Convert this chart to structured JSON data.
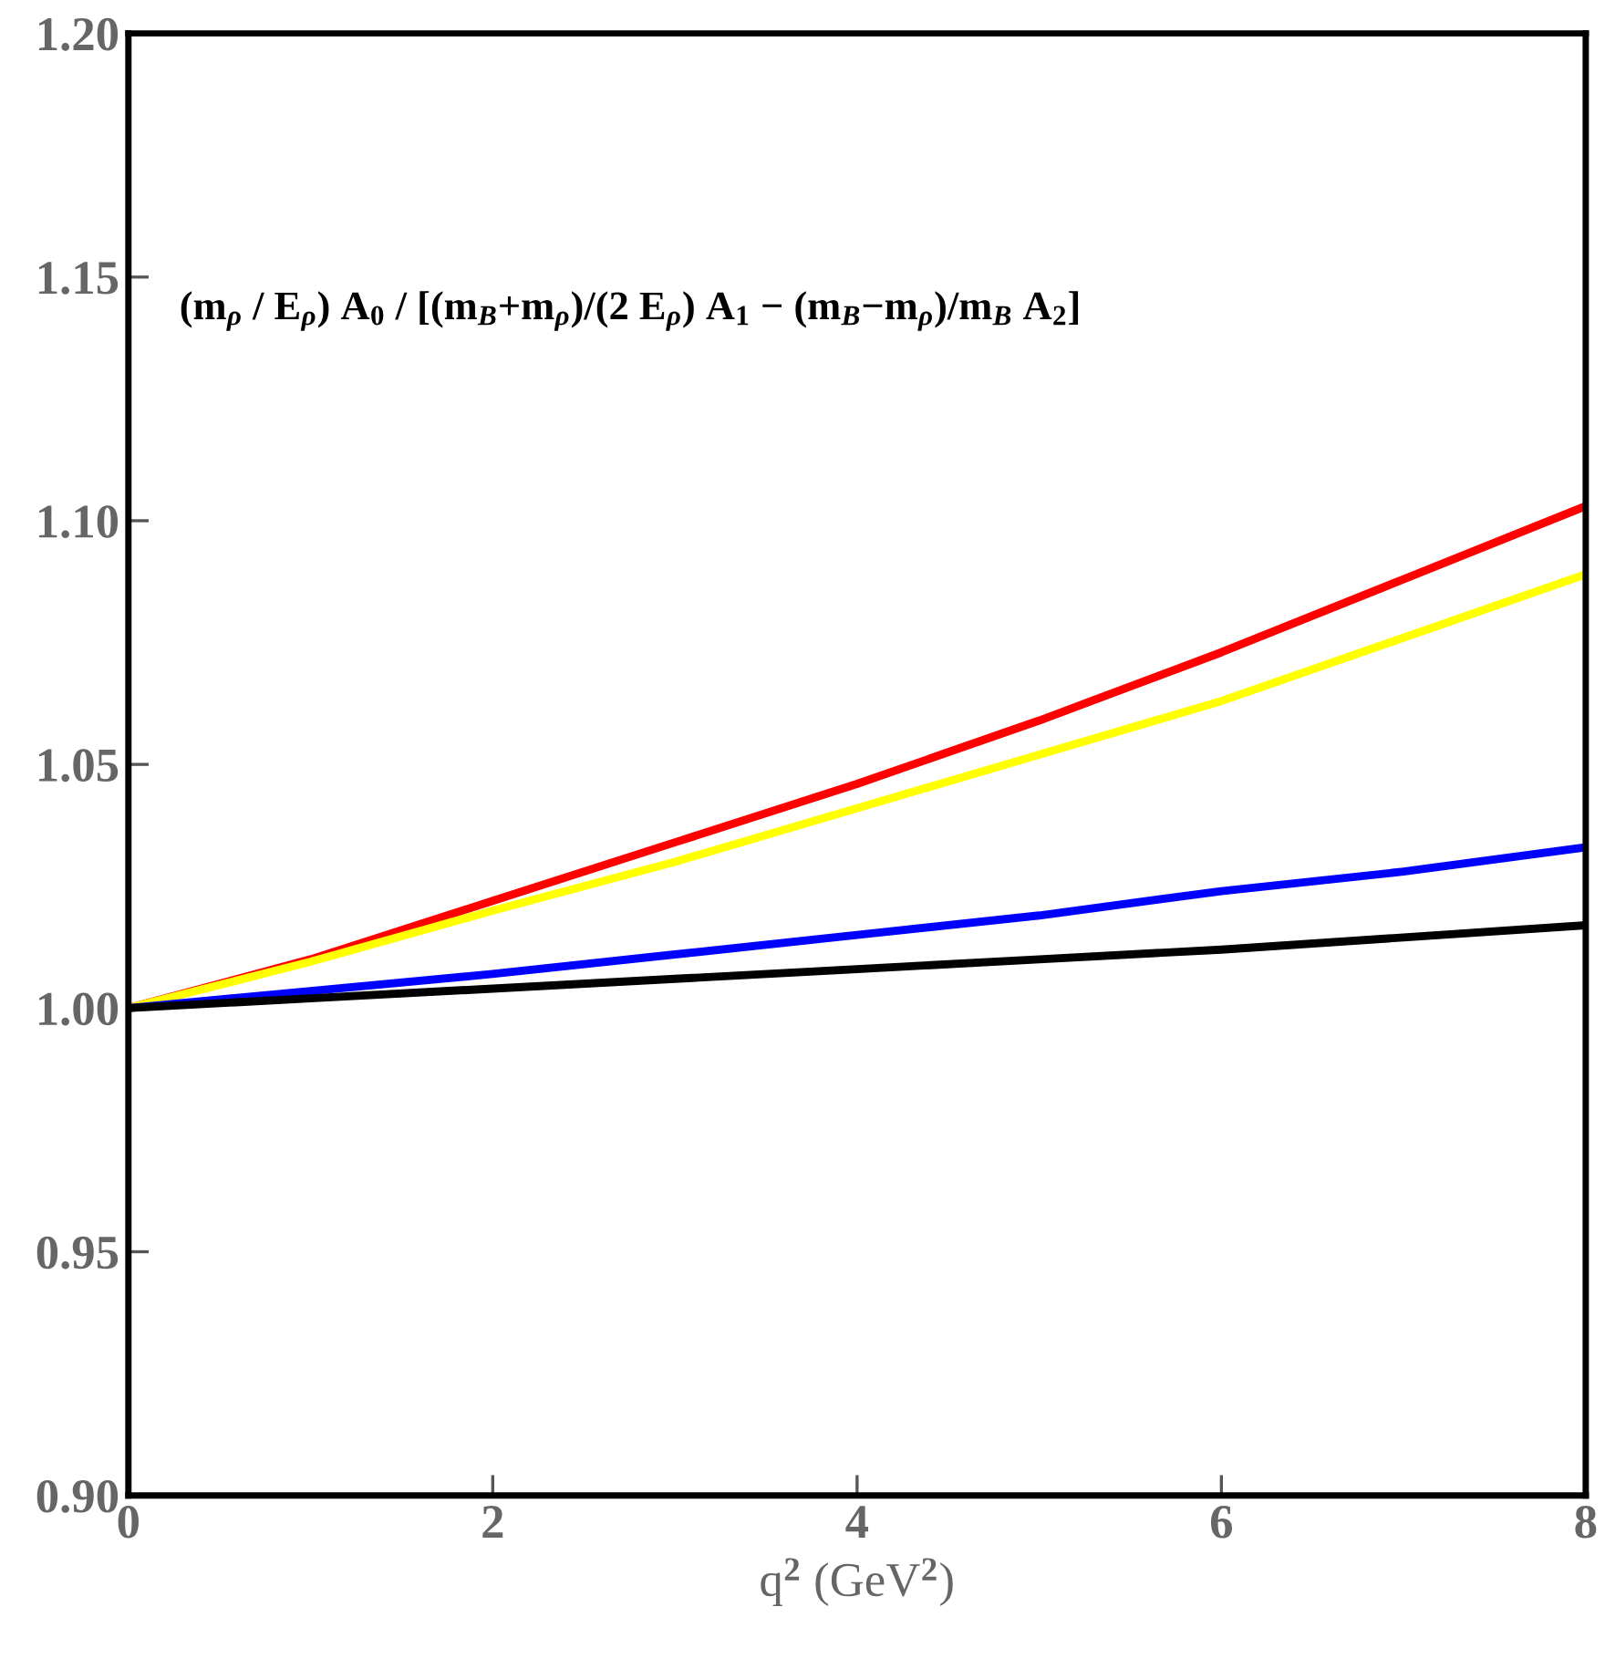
{
  "chart_data": {
    "type": "line",
    "xlabel": "q$^{2}$ (GeV$^{2}$)",
    "annotations": [
      "(m$_{ρ}$ / E$_{ρ}$) A$_{0}$ / [(m$_{B}$+m$_{ρ}$)/(2 E$_{ρ}$) A$_{1}$ − (m$_{B}$−m$_{ρ}$)/m$_{B}$ A$_{2}$]"
    ],
    "x": [
      0,
      1,
      2,
      3,
      4,
      5,
      6,
      7,
      8
    ],
    "series": [
      {
        "color": "#ff0000",
        "values": [
          1.0,
          1.01,
          1.022,
          1.034,
          1.046,
          1.059,
          1.073,
          1.088,
          1.103
        ]
      },
      {
        "color": "#ffff00",
        "values": [
          1.0,
          1.0095,
          1.02,
          1.03,
          1.041,
          1.052,
          1.063,
          1.076,
          1.089
        ]
      },
      {
        "color": "#0000ff",
        "values": [
          1.0,
          1.0035,
          1.007,
          1.011,
          1.015,
          1.019,
          1.024,
          1.028,
          1.033
        ]
      },
      {
        "color": "#000000",
        "values": [
          1.0,
          1.002,
          1.004,
          1.006,
          1.008,
          1.01,
          1.012,
          1.0145,
          1.017
        ]
      }
    ],
    "xlim": [
      0,
      8
    ],
    "xticks": [
      0,
      2,
      4,
      6,
      8
    ],
    "ylim": [
      0.9,
      1.2
    ],
    "yticks": [
      {
        "value": 0.9,
        "label": "0.90"
      },
      {
        "value": 0.95,
        "label": "0.95"
      },
      {
        "value": 1.0,
        "label": "1.00"
      },
      {
        "value": 1.05,
        "label": "1.05"
      },
      {
        "value": 1.1,
        "label": "1.10"
      },
      {
        "value": 1.15,
        "label": "1.15"
      },
      {
        "value": 1.2,
        "label": "1.20"
      }
    ],
    "grid": false,
    "legend": false,
    "marker": "none",
    "line_style": "solid"
  }
}
